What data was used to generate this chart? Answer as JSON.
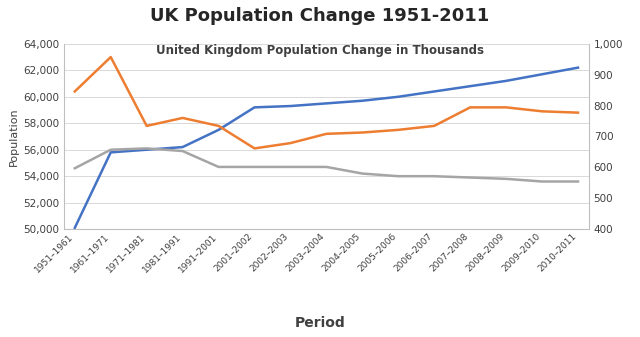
{
  "title": "UK Population Change 1951-2011",
  "subtitle": "United Kingdom Population Change in Thousands",
  "xlabel": "Period",
  "ylabel": "Population",
  "periods": [
    "1951–1961",
    "1961–1971",
    "1971–1981",
    "1981–1991",
    "1991–2001",
    "2001–2002",
    "2002–2003",
    "2003–2004",
    "2004–2005",
    "2005–2006",
    "2006–2007",
    "2007–2008",
    "2008–2009",
    "2009–2010",
    "2010–2011"
  ],
  "blue_line": [
    50100,
    55800,
    56000,
    56200,
    57500,
    59200,
    59300,
    59500,
    59700,
    60000,
    60400,
    60800,
    61200,
    61700,
    62200
  ],
  "orange_line": [
    60400,
    63000,
    57800,
    58400,
    57800,
    56100,
    56500,
    57200,
    57300,
    57500,
    57800,
    59200,
    59200,
    58900,
    58800
  ],
  "gray_line": [
    54600,
    56000,
    56100,
    55900,
    54700,
    54700,
    54700,
    54700,
    54200,
    54000,
    54000,
    53900,
    53800,
    53600,
    53600
  ],
  "ylim_left": [
    50000,
    64000
  ],
  "ylim_right": [
    400,
    1000
  ],
  "yticks_left": [
    50000,
    52000,
    54000,
    56000,
    58000,
    60000,
    62000,
    64000
  ],
  "yticks_right": [
    400,
    500,
    600,
    700,
    800,
    900,
    1000
  ],
  "blue_color": "#4472C4",
  "orange_color": "#ED7D31",
  "gray_color": "#A5A5A5",
  "bg_color": "#FFFFFF",
  "plot_bg_color": "#FFFFFF",
  "grid_color": "#D9D9D9"
}
